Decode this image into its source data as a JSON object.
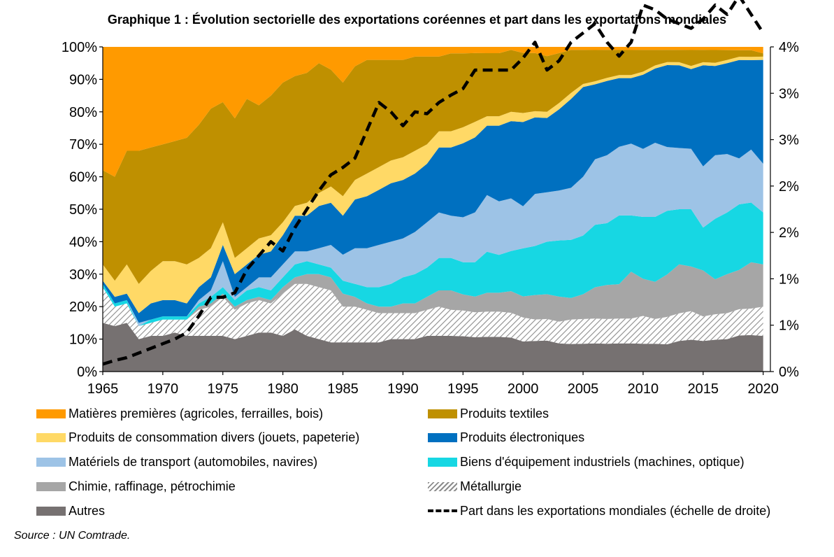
{
  "title": "Graphique 1 : Évolution sectorielle des exportations coréennes et part dans les exportations mondiales",
  "source": "Source : UN Comtrade.",
  "chart_data": {
    "type": "area",
    "stacked": true,
    "x": [
      1965,
      1966,
      1967,
      1968,
      1969,
      1970,
      1971,
      1972,
      1973,
      1974,
      1975,
      1976,
      1977,
      1978,
      1979,
      1980,
      1981,
      1982,
      1983,
      1984,
      1985,
      1986,
      1987,
      1988,
      1989,
      1990,
      1991,
      1992,
      1993,
      1994,
      1995,
      1996,
      1997,
      1998,
      1999,
      2000,
      2001,
      2002,
      2003,
      2004,
      2005,
      2006,
      2007,
      2008,
      2009,
      2010,
      2011,
      2012,
      2013,
      2014,
      2015,
      2016,
      2017,
      2018,
      2019,
      2020
    ],
    "xticks": [
      1965,
      1970,
      1975,
      1980,
      1985,
      1990,
      1995,
      2000,
      2005,
      2010,
      2015,
      2020
    ],
    "xlim": [
      1965,
      2020.6
    ],
    "left_axis": {
      "ylim": [
        0,
        100
      ],
      "ticks": [
        "0%",
        "10%",
        "20%",
        "30%",
        "40%",
        "50%",
        "60%",
        "70%",
        "80%",
        "90%",
        "100%"
      ]
    },
    "right_axis": {
      "ylim": [
        0,
        3.5
      ],
      "ticks": [
        "0%",
        "1%",
        "1%",
        "2%",
        "2%",
        "3%",
        "3%",
        "4%"
      ]
    },
    "grid": false,
    "legend_position": "bottom",
    "series": [
      {
        "name": "Autres",
        "color": "#767171",
        "values": [
          15,
          14,
          15,
          10,
          11,
          11,
          12,
          11,
          11,
          11,
          11,
          10,
          11,
          12,
          12,
          11,
          13,
          11,
          10,
          9,
          9,
          9,
          9,
          9,
          10,
          10,
          10,
          11,
          11,
          11,
          11,
          11,
          11,
          11,
          11,
          10,
          10,
          10,
          9,
          9,
          9,
          9,
          9,
          9,
          9,
          9,
          9,
          9,
          10,
          10,
          10,
          10,
          10,
          11,
          11,
          11
        ]
      },
      {
        "name": "Métallurgie",
        "color": "#d9d9d9",
        "pattern": "hatch",
        "values": [
          11,
          6,
          6,
          4,
          4,
          5,
          4,
          5,
          8,
          9,
          12,
          9,
          10,
          10,
          9,
          13,
          14,
          16,
          16,
          16,
          11,
          11,
          10,
          9,
          8,
          8,
          8,
          8,
          9,
          8,
          8,
          8,
          8,
          8,
          8,
          8,
          7,
          7,
          7,
          8,
          8,
          8,
          8,
          8,
          8,
          9,
          8,
          9,
          9,
          9,
          8,
          8,
          8,
          8,
          8,
          9
        ]
      },
      {
        "name": "Chimie, raffinage, pétrochimie",
        "color": "#a6a6a6",
        "values": [
          0,
          0,
          0,
          0,
          0,
          0,
          0,
          0,
          1,
          1,
          1,
          1,
          1,
          1,
          1,
          2,
          2,
          3,
          4,
          4,
          4,
          3,
          2,
          2,
          2,
          3,
          3,
          4,
          5,
          6,
          5,
          5,
          6,
          6,
          7,
          7,
          8,
          8,
          8,
          7,
          8,
          10,
          11,
          11,
          15,
          12,
          12,
          14,
          16,
          14,
          15,
          11,
          12,
          12,
          14,
          13
        ]
      },
      {
        "name": "Biens d'équipement industriels (machines, optique)",
        "color": "#17d7e3",
        "values": [
          1,
          1,
          1,
          0,
          1,
          1,
          1,
          1,
          1,
          2,
          2,
          2,
          3,
          3,
          3,
          3,
          4,
          4,
          3,
          3,
          4,
          4,
          5,
          6,
          7,
          8,
          9,
          9,
          10,
          10,
          10,
          11,
          13,
          12,
          13,
          16,
          16,
          17,
          18,
          19,
          19,
          20,
          20,
          22,
          18,
          20,
          21,
          21,
          18,
          18,
          14,
          19,
          19,
          20,
          18,
          16
        ]
      },
      {
        "name": "Matériels de transport (automobiles, navires)",
        "color": "#9dc3e6",
        "values": [
          0,
          0,
          0,
          1,
          0,
          0,
          0,
          0,
          1,
          2,
          8,
          1,
          1,
          3,
          4,
          4,
          4,
          3,
          5,
          7,
          8,
          11,
          12,
          13,
          13,
          12,
          13,
          14,
          14,
          13,
          14,
          16,
          18,
          17,
          17,
          14,
          17,
          16,
          16,
          17,
          19,
          21,
          22,
          22,
          23,
          22,
          24,
          21,
          20,
          19,
          20,
          20,
          18,
          14,
          16,
          15
        ]
      },
      {
        "name": "Produits électroniques",
        "color": "#0070c0",
        "values": [
          1,
          2,
          2,
          3,
          5,
          5,
          5,
          4,
          4,
          4,
          5,
          7,
          7,
          7,
          8,
          9,
          11,
          11,
          13,
          13,
          12,
          15,
          16,
          17,
          18,
          18,
          18,
          18,
          20,
          21,
          23,
          24,
          22,
          24,
          25,
          28,
          25,
          24,
          26,
          29,
          29,
          24,
          24,
          22,
          21,
          24,
          24,
          27,
          27,
          25,
          33,
          28,
          28,
          30,
          27,
          32
        ]
      },
      {
        "name": "Produits de consommation divers (jouets, papeterie)",
        "color": "#ffd966",
        "values": [
          5,
          5,
          9,
          9,
          10,
          12,
          12,
          12,
          9,
          9,
          7,
          5,
          5,
          5,
          5,
          4,
          3,
          4,
          4,
          5,
          6,
          6,
          7,
          7,
          7,
          7,
          7,
          6,
          5,
          5,
          5,
          5,
          3,
          3,
          3,
          3,
          2,
          2,
          2,
          2,
          1,
          1,
          1,
          1,
          1,
          1,
          1,
          1,
          1,
          1,
          1,
          1,
          1,
          1,
          1,
          1
        ]
      },
      {
        "name": "Produits textiles",
        "color": "#bf9000",
        "values": [
          29,
          32,
          35,
          41,
          38,
          36,
          37,
          39,
          41,
          43,
          37,
          43,
          46,
          41,
          43,
          43,
          40,
          40,
          40,
          36,
          35,
          35,
          35,
          33,
          31,
          30,
          29,
          27,
          23,
          24,
          23,
          22,
          20,
          20,
          20,
          20,
          19,
          18,
          16,
          14,
          11,
          10,
          9,
          8,
          8,
          7,
          5,
          4,
          4,
          5,
          4,
          4,
          3,
          2,
          2,
          1
        ]
      },
      {
        "name": "Matières premières (agricoles, ferrailles, bois)",
        "color": "#ff9a00",
        "values": [
          38,
          40,
          32,
          32,
          31,
          30,
          29,
          28,
          24,
          19,
          17,
          22,
          16,
          18,
          15,
          11,
          9,
          8,
          5,
          7,
          11,
          6,
          4,
          4,
          4,
          4,
          3,
          3,
          3,
          2,
          2,
          2,
          2,
          2,
          1,
          2,
          2,
          3,
          2,
          1,
          1,
          1,
          1,
          1,
          1,
          1,
          1,
          1,
          1,
          1,
          1,
          1,
          1,
          1,
          1,
          2
        ]
      }
    ],
    "line_series": {
      "name": "Part dans les exportations mondiales (échelle de droite)",
      "axis": "right",
      "style": "dashed",
      "color": "#000000",
      "values": [
        0.08,
        0.12,
        0.15,
        0.2,
        0.25,
        0.3,
        0.35,
        0.42,
        0.6,
        0.8,
        0.8,
        0.85,
        1.1,
        1.25,
        1.4,
        1.3,
        1.55,
        1.75,
        1.95,
        2.12,
        2.2,
        2.3,
        2.6,
        2.9,
        2.8,
        2.65,
        2.8,
        2.78,
        2.9,
        2.98,
        3.05,
        3.25,
        3.25,
        3.25,
        3.25,
        3.38,
        3.55,
        3.25,
        3.35,
        3.55,
        3.65,
        3.75,
        3.55,
        3.4,
        3.55,
        3.95,
        3.9,
        3.8,
        3.75,
        3.7,
        3.8,
        3.95,
        3.85,
        4.05,
        3.85,
        3.65
      ]
    },
    "legend": {
      "items": [
        {
          "label": "Matières premières (agricoles, ferrailles, bois)",
          "swatch": "#ff9a00"
        },
        {
          "label": "Produits textiles",
          "swatch": "#bf9000"
        },
        {
          "label": "Produits de consommation divers (jouets, papeterie)",
          "swatch": "#ffd966"
        },
        {
          "label": "Produits électroniques",
          "swatch": "#0070c0"
        },
        {
          "label": "Matériels de transport (automobiles, navires)",
          "swatch": "#9dc3e6"
        },
        {
          "label": "Biens d'équipement industriels (machines, optique)",
          "swatch": "#17d7e3"
        },
        {
          "label": "Chimie, raffinage, pétrochimie",
          "swatch": "#a6a6a6"
        },
        {
          "label": "Métallurgie",
          "swatch": "hatch"
        },
        {
          "label": "Autres",
          "swatch": "#767171"
        },
        {
          "label": "Part dans les exportations mondiales (échelle de droite)",
          "swatch": "dashed-line"
        }
      ]
    }
  }
}
